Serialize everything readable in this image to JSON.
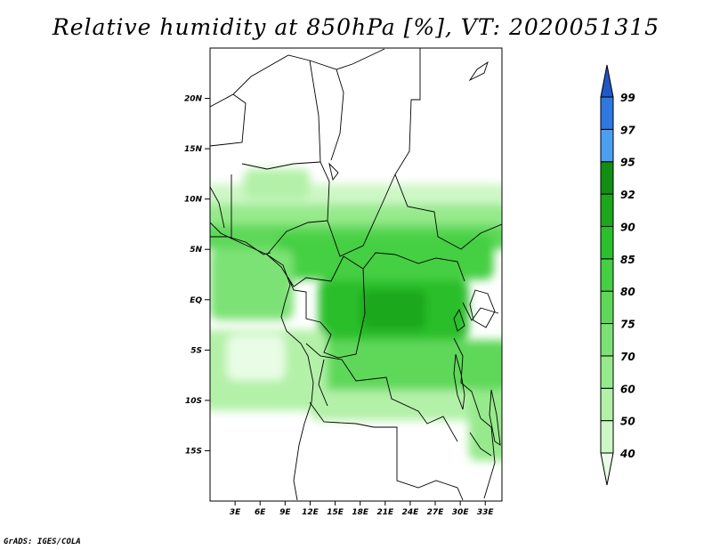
{
  "title": "Relative humidity at 850hPa [%], VT: 2020051315",
  "credit": "GrADS: IGES/COLA",
  "chart_data": {
    "type": "heatmap",
    "title": "Relative humidity at 850hPa [%], VT: 2020051315",
    "variable": "Relative humidity at 850hPa",
    "units": "%",
    "valid_time": "2020051315",
    "grid": false,
    "legend_placement": "right",
    "xlim": [
      0,
      35
    ],
    "ylim": [
      -20,
      25
    ],
    "x_ticks": [
      {
        "value": 3,
        "label": "3E"
      },
      {
        "value": 6,
        "label": "6E"
      },
      {
        "value": 9,
        "label": "9E"
      },
      {
        "value": 12,
        "label": "12E"
      },
      {
        "value": 15,
        "label": "15E"
      },
      {
        "value": 18,
        "label": "18E"
      },
      {
        "value": 21,
        "label": "21E"
      },
      {
        "value": 24,
        "label": "24E"
      },
      {
        "value": 27,
        "label": "27E"
      },
      {
        "value": 30,
        "label": "30E"
      },
      {
        "value": 33,
        "label": "33E"
      }
    ],
    "y_ticks": [
      {
        "value": 20,
        "label": "20N"
      },
      {
        "value": 15,
        "label": "15N"
      },
      {
        "value": 10,
        "label": "10N"
      },
      {
        "value": 5,
        "label": "5N"
      },
      {
        "value": 0,
        "label": "EQ"
      },
      {
        "value": -5,
        "label": "5S"
      },
      {
        "value": -10,
        "label": "10S"
      },
      {
        "value": -15,
        "label": "15S"
      }
    ],
    "colorbar": {
      "levels": [
        40,
        50,
        60,
        70,
        75,
        80,
        85,
        90,
        92,
        95,
        97,
        99
      ],
      "colors": [
        "#e9fde6",
        "#cdf7c6",
        "#b3f1a8",
        "#97ea8c",
        "#7de275",
        "#5fd85a",
        "#45cf43",
        "#2cbf2c",
        "#1ba81c",
        "#128f13",
        "#4b9ff0",
        "#2f78e0",
        "#1f58c4"
      ]
    },
    "regions": [
      {
        "lon": [
          -1,
          36
        ],
        "lat": [
          9.5,
          11.5
        ],
        "rh_class": 1
      },
      {
        "lon": [
          -1,
          36
        ],
        "lat": [
          7.5,
          9.5
        ],
        "rh_class": 3
      },
      {
        "lon": [
          -1,
          36
        ],
        "lat": [
          5,
          7.5
        ],
        "rh_class": 5
      },
      {
        "lon": [
          8,
          34
        ],
        "lat": [
          2,
          6.5
        ],
        "rh_class": 6
      },
      {
        "lon": [
          13,
          31
        ],
        "lat": [
          -4,
          2
        ],
        "rh_class": 7
      },
      {
        "lon": [
          18,
          26
        ],
        "lat": [
          -3,
          1
        ],
        "rh_class": 8
      },
      {
        "lon": [
          0,
          10
        ],
        "lat": [
          -2,
          5
        ],
        "rh_class": 4
      },
      {
        "lon": [
          10,
          36
        ],
        "lat": [
          -9,
          -4
        ],
        "rh_class": 5
      },
      {
        "lon": [
          -1,
          14
        ],
        "lat": [
          -11,
          -3
        ],
        "rh_class": 2
      },
      {
        "lon": [
          2,
          9
        ],
        "lat": [
          -8,
          -3.5
        ],
        "rh_class": 0
      },
      {
        "lon": [
          12,
          32
        ],
        "lat": [
          -12,
          -9
        ],
        "rh_class": 2
      },
      {
        "lon": [
          31,
          36
        ],
        "lat": [
          -16,
          -9
        ],
        "rh_class": 3
      },
      {
        "lon": [
          4,
          12
        ],
        "lat": [
          10,
          13
        ],
        "rh_class": 2
      }
    ]
  }
}
